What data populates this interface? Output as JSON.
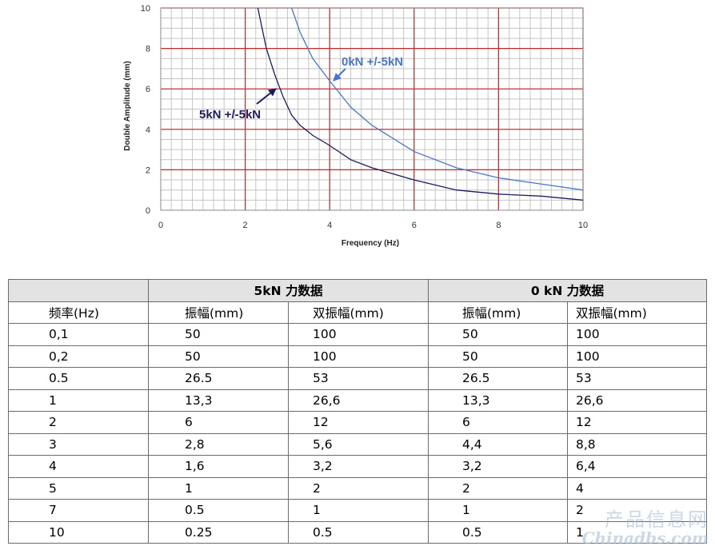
{
  "chart_data": {
    "type": "line",
    "xlabel": "Frequency (Hz)",
    "ylabel": "Double Amplitude (mm)",
    "xlim": [
      0,
      10
    ],
    "ylim": [
      0,
      10
    ],
    "x_ticks": [
      0,
      2,
      4,
      6,
      8,
      10
    ],
    "y_ticks": [
      0,
      2,
      4,
      6,
      8,
      10
    ],
    "grid": true,
    "series": [
      {
        "name": "5kN +/-5kN",
        "color": "#1c1c5e",
        "x": [
          2.3,
          2.5,
          2.7,
          2.9,
          3.1,
          3.3,
          3.6,
          4.0,
          4.5,
          5.0,
          6.0,
          7.0,
          8.0,
          9.0,
          10.0
        ],
        "y": [
          10.0,
          8.0,
          6.7,
          5.6,
          4.7,
          4.2,
          3.7,
          3.2,
          2.5,
          2.1,
          1.5,
          1.0,
          0.8,
          0.7,
          0.5
        ]
      },
      {
        "name": "0kN +/-5kN",
        "color": "#4a76c8",
        "x": [
          3.1,
          3.3,
          3.6,
          4.0,
          4.5,
          5.0,
          6.0,
          7.0,
          8.0,
          9.0,
          10.0
        ],
        "y": [
          10.0,
          8.8,
          7.5,
          6.4,
          5.1,
          4.2,
          2.9,
          2.1,
          1.6,
          1.3,
          1.0
        ]
      }
    ],
    "annotations": [
      {
        "text": "0kN +/-5kN",
        "series": 1
      },
      {
        "text": "5kN +/-5kN",
        "series": 0
      }
    ]
  },
  "table": {
    "group_headers": [
      "",
      "5kN 力数据",
      "0 kN 力数据"
    ],
    "column_headers": [
      "频率(Hz)",
      "振幅(mm)",
      "双振幅(mm)",
      "振幅(mm)",
      "双振幅(mm)"
    ],
    "rows": [
      [
        "0,1",
        "50",
        "100",
        "50",
        "100"
      ],
      [
        "0,2",
        "50",
        "100",
        "50",
        "100"
      ],
      [
        "0.5",
        "26.5",
        "53",
        "26.5",
        "53"
      ],
      [
        "1",
        "13,3",
        "26,6",
        "13,3",
        "26,6"
      ],
      [
        "2",
        "6",
        "12",
        "6",
        "12"
      ],
      [
        "3",
        "2,8",
        "5,6",
        "4,4",
        "8,8"
      ],
      [
        "4",
        "1,6",
        "3,2",
        "3,2",
        "6,4"
      ],
      [
        "5",
        "1",
        "2",
        "2",
        "4"
      ],
      [
        "7",
        "0.5",
        "1",
        "1",
        "2"
      ],
      [
        "10",
        "0.25",
        "0.5",
        "0.5",
        "1"
      ]
    ]
  },
  "watermark": {
    "line1": "产品信息网",
    "line2": "Chinadbs.com"
  }
}
